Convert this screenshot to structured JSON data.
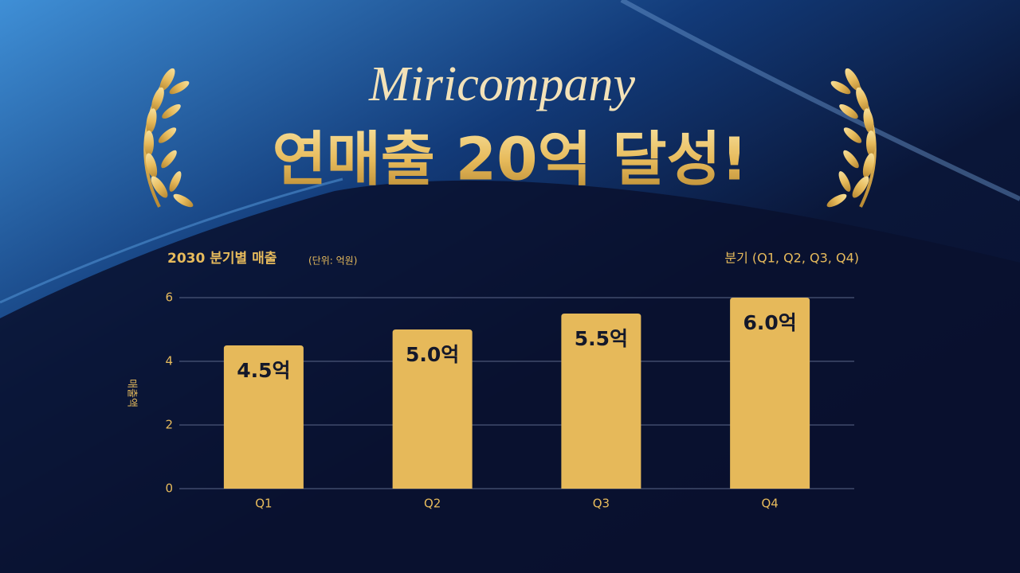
{
  "chart_data": {
    "type": "bar",
    "brand": "Miricompany",
    "title": "연매출 20억 달성!",
    "subtitle": "2030 분기별 매출",
    "unit_note": "(단위: 억원)",
    "x_label": "분기 (Q1, Q2, Q3, Q4)",
    "y_label": "매출액",
    "categories": [
      "Q1",
      "Q2",
      "Q3",
      "Q4"
    ],
    "values": [
      4.5,
      5.0,
      5.5,
      6.0
    ],
    "value_labels": [
      "4.5억",
      "5.0억",
      "5.5억",
      "6.0억"
    ],
    "color": "#e6b95a",
    "ylim": [
      0,
      6
    ],
    "yticks": [
      0,
      2,
      4,
      6
    ],
    "grid": true
  }
}
